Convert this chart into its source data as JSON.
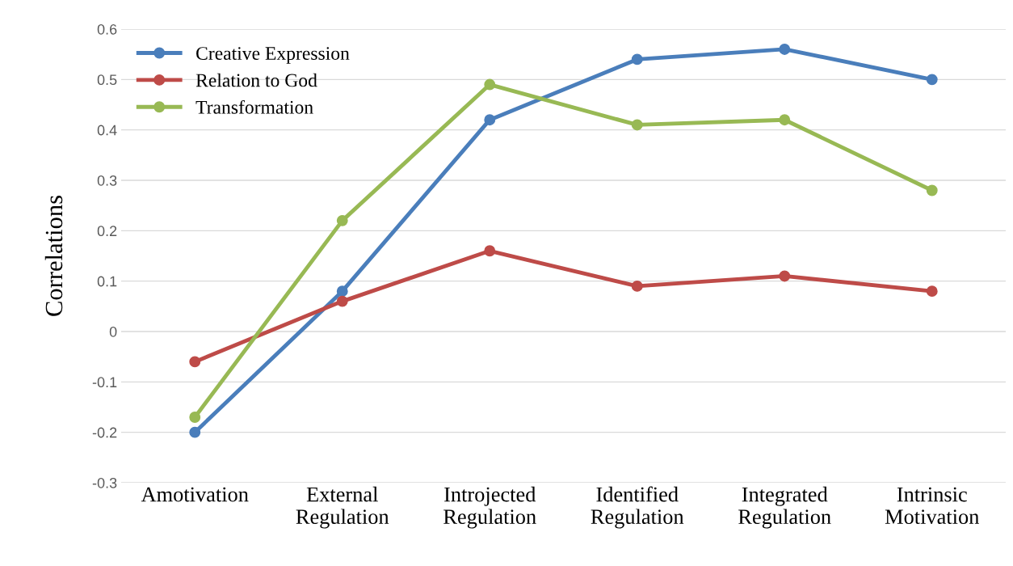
{
  "chart_data": {
    "type": "line",
    "ylabel": "Correlations",
    "categories": [
      "Amotivation",
      "External\nRegulation",
      "Introjected\nRegulation",
      "Identified\nRegulation",
      "Integrated\nRegulation",
      "Intrinsic\nMotivation"
    ],
    "series": [
      {
        "name": "Creative Expression",
        "color": "#4a7ebb",
        "values": [
          -0.2,
          0.08,
          0.42,
          0.54,
          0.56,
          0.5
        ]
      },
      {
        "name": "Relation to God",
        "color": "#be4b48",
        "values": [
          -0.06,
          0.06,
          0.16,
          0.09,
          0.11,
          0.08
        ]
      },
      {
        "name": "Transformation",
        "color": "#98b954",
        "values": [
          -0.17,
          0.22,
          0.49,
          0.41,
          0.42,
          0.28
        ]
      }
    ],
    "ylim": [
      -0.3,
      0.6
    ],
    "yticks": [
      -0.3,
      -0.2,
      -0.1,
      0,
      0.1,
      0.2,
      0.3,
      0.4,
      0.5,
      0.6
    ],
    "grid": "y",
    "legend": "top left",
    "marker": "circle",
    "line_style": "solid"
  }
}
